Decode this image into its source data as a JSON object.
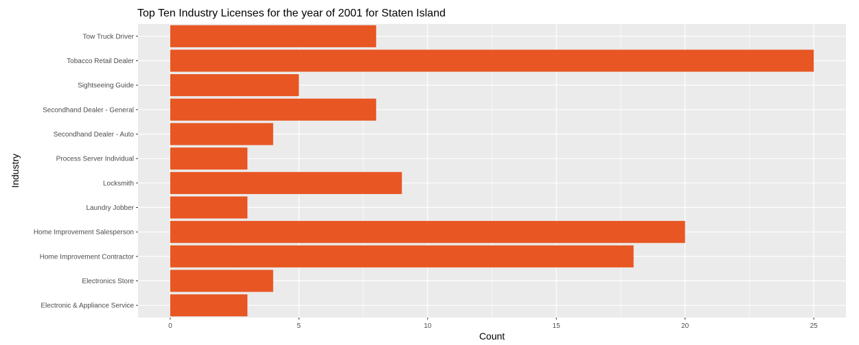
{
  "chart_data": {
    "type": "bar",
    "orientation": "horizontal",
    "title": "Top Ten Industry Licenses for the year of 2001 for Staten Island",
    "xlabel": "Count",
    "ylabel": "Industry",
    "categories": [
      "Tow Truck Driver",
      "Tobacco Retail Dealer",
      "Sightseeing Guide",
      "Secondhand Dealer - General",
      "Secondhand Dealer - Auto",
      "Process Server Individual",
      "Locksmith",
      "Laundry Jobber",
      "Home Improvement Salesperson",
      "Home Improvement Contractor",
      "Electronics Store",
      "Electronic & Appliance Service"
    ],
    "values": [
      8,
      25,
      5,
      8,
      4,
      3,
      9,
      3,
      20,
      18,
      4,
      3
    ],
    "xlim": [
      -1.25,
      26.25
    ],
    "xticks": [
      "0",
      "5",
      "10",
      "15",
      "20",
      "25"
    ],
    "grid": true,
    "legend": "none",
    "colors": {
      "bar": "#E85623",
      "panel": "#EBEBEB",
      "grid_major": "#FFFFFF",
      "tick_text": "#4D4D4D"
    }
  }
}
